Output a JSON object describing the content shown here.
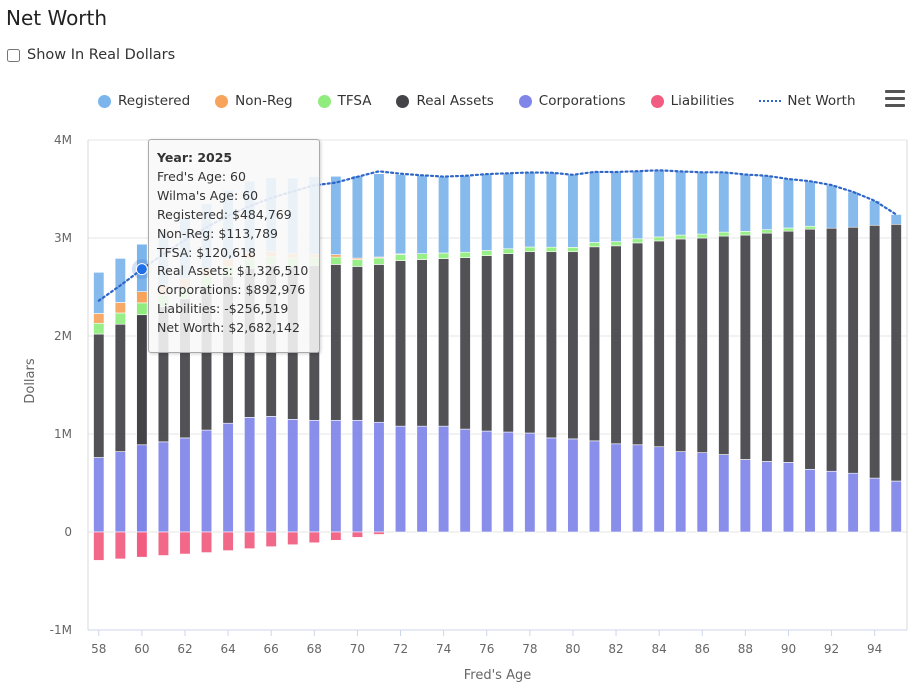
{
  "page": {
    "title": "Net Worth",
    "real_dollars_label": "Show In Real Dollars",
    "real_dollars_checked": false
  },
  "legend": [
    {
      "label": "Registered",
      "color": "#7cb5ec",
      "kind": "dot"
    },
    {
      "label": "Non-Reg",
      "color": "#f7a35c",
      "kind": "dot"
    },
    {
      "label": "TFSA",
      "color": "#90ed7d",
      "kind": "dot"
    },
    {
      "label": "Real Assets",
      "color": "#434348",
      "kind": "dot"
    },
    {
      "label": "Corporations",
      "color": "#8085e9",
      "kind": "dot"
    },
    {
      "label": "Liabilities",
      "color": "#f15c80",
      "kind": "dot"
    },
    {
      "label": "Net Worth",
      "color": "#2f67c8",
      "kind": "line"
    }
  ],
  "menu_icon": "hamburger-menu-icon",
  "tooltip": {
    "title": "Year: 2025",
    "lines": [
      "Fred's Age: 60",
      "Wilma's Age: 60",
      "Registered: $484,769",
      "Non-Reg: $113,789",
      "TFSA: $120,618",
      "Real Assets: $1,326,510",
      "Corporations: $892,976",
      "Liabilities: -$256,519",
      "Net Worth: $2,682,142"
    ]
  },
  "chart_data": {
    "type": "bar",
    "stacked": true,
    "xlabel": "Fred's Age",
    "ylabel": "Dollars",
    "ylim": [
      -1000000,
      4000000
    ],
    "yticks": [
      -1000000,
      0,
      1000000,
      2000000,
      3000000,
      4000000
    ],
    "ytick_labels": [
      "-1M",
      "0",
      "1M",
      "2M",
      "3M",
      "4M"
    ],
    "xtick_labels": [
      "58",
      "60",
      "62",
      "64",
      "66",
      "68",
      "70",
      "72",
      "74",
      "76",
      "78",
      "80",
      "82",
      "84",
      "86",
      "88",
      "90",
      "92",
      "94"
    ],
    "x": [
      58,
      59,
      60,
      61,
      62,
      63,
      64,
      65,
      66,
      67,
      68,
      69,
      70,
      71,
      72,
      73,
      74,
      75,
      76,
      77,
      78,
      79,
      80,
      81,
      82,
      83,
      84,
      85,
      86,
      87,
      88,
      89,
      90,
      91,
      92,
      93,
      94,
      95
    ],
    "highlight_x": 60,
    "legend_position": "top",
    "grid": true,
    "series": [
      {
        "name": "Corporations",
        "color": "#8085e9",
        "values": [
          760000,
          820000,
          890000,
          920000,
          960000,
          1040000,
          1110000,
          1170000,
          1180000,
          1150000,
          1140000,
          1140000,
          1140000,
          1120000,
          1080000,
          1080000,
          1080000,
          1050000,
          1030000,
          1020000,
          1010000,
          960000,
          950000,
          930000,
          900000,
          890000,
          870000,
          820000,
          810000,
          790000,
          740000,
          720000,
          710000,
          640000,
          620000,
          600000,
          550000,
          520000
        ]
      },
      {
        "name": "Real Assets",
        "color": "#434348",
        "values": [
          1260000,
          1300000,
          1327000,
          1380000,
          1420000,
          1460000,
          1500000,
          1520000,
          1540000,
          1560000,
          1580000,
          1590000,
          1570000,
          1610000,
          1690000,
          1700000,
          1710000,
          1750000,
          1790000,
          1820000,
          1850000,
          1900000,
          1910000,
          1980000,
          2020000,
          2060000,
          2100000,
          2170000,
          2190000,
          2230000,
          2290000,
          2330000,
          2360000,
          2450000,
          2480000,
          2510000,
          2580000,
          2620000
        ]
      },
      {
        "name": "TFSA",
        "color": "#90ed7d",
        "values": [
          110000,
          115000,
          121000,
          115000,
          110000,
          105000,
          100000,
          95000,
          90000,
          85000,
          80000,
          75000,
          70000,
          66000,
          63000,
          60000,
          57000,
          55000,
          52000,
          50000,
          48000,
          46000,
          45000,
          44000,
          43000,
          42000,
          41000,
          40000,
          40000,
          40000,
          38000,
          35000,
          32000,
          30000,
          0,
          0,
          0,
          0
        ]
      },
      {
        "name": "Non-Reg",
        "color": "#f7a35c",
        "values": [
          100000,
          107000,
          114000,
          105000,
          95000,
          85000,
          75000,
          65000,
          55000,
          45000,
          35000,
          25000,
          15000,
          10000,
          5000,
          0,
          0,
          0,
          0,
          0,
          0,
          0,
          0,
          0,
          0,
          0,
          0,
          0,
          0,
          0,
          0,
          0,
          0,
          0,
          0,
          0,
          0,
          0
        ]
      },
      {
        "name": "Registered",
        "color": "#7cb5ec",
        "values": [
          420000,
          450000,
          485000,
          560000,
          620000,
          660000,
          700000,
          730000,
          750000,
          770000,
          790000,
          800000,
          840000,
          850000,
          810000,
          800000,
          780000,
          780000,
          780000,
          770000,
          760000,
          760000,
          740000,
          720000,
          710000,
          690000,
          680000,
          650000,
          630000,
          610000,
          580000,
          550000,
          500000,
          460000,
          440000,
          360000,
          250000,
          100000
        ]
      },
      {
        "name": "Liabilities",
        "color": "#f15c80",
        "values": [
          -290000,
          -275000,
          -257000,
          -240000,
          -225000,
          -210000,
          -190000,
          -170000,
          -150000,
          -130000,
          -110000,
          -85000,
          -55000,
          -25000,
          0,
          0,
          0,
          0,
          0,
          0,
          0,
          0,
          0,
          0,
          0,
          0,
          0,
          0,
          0,
          0,
          0,
          0,
          0,
          0,
          0,
          0,
          0,
          0
        ]
      }
    ],
    "line_series": {
      "name": "Net Worth",
      "color": "#2f67c8",
      "values": [
        2360000,
        2515000,
        2682000,
        2837000,
        2980000,
        3109000,
        3228000,
        3324000,
        3408000,
        3475000,
        3538000,
        3565000,
        3624000,
        3681000,
        3656000,
        3640000,
        3627000,
        3635000,
        3652000,
        3660000,
        3668000,
        3666000,
        3645000,
        3674000,
        3673000,
        3682000,
        3691000,
        3680000,
        3670000,
        3670000,
        3648000,
        3635000,
        3602000,
        3580000,
        3540000,
        3470000,
        3380000,
        3240000
      ]
    }
  }
}
